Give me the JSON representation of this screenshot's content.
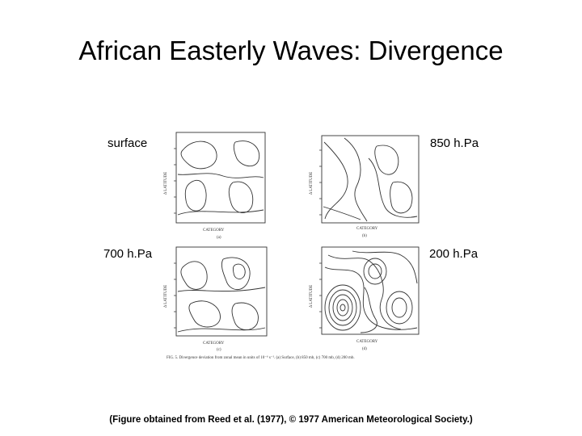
{
  "slide": {
    "title": "African Easterly Waves: Divergence",
    "caption": "(Figure obtained from Reed et al. (1977), © 1977 American Meteorological Society.)"
  },
  "panels": [
    {
      "label": "surface",
      "letter": "(a)"
    },
    {
      "label": "850 h.Pa",
      "letter": "(b)"
    },
    {
      "label": "700 h.Pa",
      "letter": "(c)"
    },
    {
      "label": "200 h.Pa",
      "letter": "(d)"
    }
  ],
  "figure": {
    "axis_x": "CATEGORY",
    "axis_y": "Δ LATITUDE",
    "caption": "FIG. 5. Divergence deviation from zonal mean in units of 10⁻⁶ s⁻¹. (a) Surface, (b) 850 mb, (c) 700 mb, (d) 200 mb."
  }
}
